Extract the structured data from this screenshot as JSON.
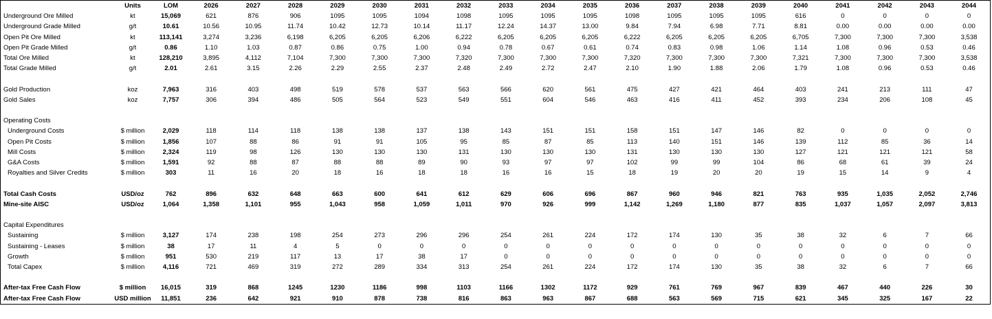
{
  "table": {
    "header": [
      "Units",
      "LOM",
      "2026",
      "2027",
      "2028",
      "2029",
      "2030",
      "2031",
      "2032",
      "2033",
      "2034",
      "2035",
      "2036",
      "2037",
      "2038",
      "2039",
      "2040",
      "2041",
      "2042",
      "2043",
      "2044"
    ],
    "groups": [
      {
        "rows": [
          {
            "label": "Underground Ore Milled",
            "units": "kt",
            "lom": "15,069",
            "values": [
              "621",
              "876",
              "906",
              "1095",
              "1095",
              "1094",
              "1098",
              "1095",
              "1095",
              "1095",
              "1098",
              "1095",
              "1095",
              "1095",
              "616",
              "0",
              "0",
              "0",
              "0"
            ]
          },
          {
            "label": "Underground Grade Milled",
            "units": "g/t",
            "lom": "10.61",
            "values": [
              "10.56",
              "10.95",
              "11.74",
              "10.42",
              "12.73",
              "10.14",
              "11.17",
              "12.24",
              "14.37",
              "13.00",
              "9.84",
              "7.94",
              "6.98",
              "7.71",
              "8.81",
              "0.00",
              "0.00",
              "0.00",
              "0.00"
            ]
          },
          {
            "label": "Open Pit Ore Milled",
            "units": "kt",
            "lom": "113,141",
            "values": [
              "3,274",
              "3,236",
              "6,198",
              "6,205",
              "6,205",
              "6,206",
              "6,222",
              "6,205",
              "6,205",
              "6,205",
              "6,222",
              "6,205",
              "6,205",
              "6,205",
              "6,705",
              "7,300",
              "7,300",
              "7,300",
              "3,538"
            ]
          },
          {
            "label": "Open Pit Grade Milled",
            "units": "g/t",
            "lom": "0.86",
            "values": [
              "1.10",
              "1.03",
              "0.87",
              "0.86",
              "0.75",
              "1.00",
              "0.94",
              "0.78",
              "0.67",
              "0.61",
              "0.74",
              "0.83",
              "0.98",
              "1.06",
              "1.14",
              "1.08",
              "0.96",
              "0.53",
              "0.46"
            ]
          },
          {
            "label": "Total Ore Milled",
            "units": "kt",
            "lom": "128,210",
            "values": [
              "3,895",
              "4,112",
              "7,104",
              "7,300",
              "7,300",
              "7,300",
              "7,320",
              "7,300",
              "7,300",
              "7,300",
              "7,320",
              "7,300",
              "7,300",
              "7,300",
              "7,321",
              "7,300",
              "7,300",
              "7,300",
              "3,538"
            ]
          },
          {
            "label": "Total Grade Milled",
            "units": "g/t",
            "lom": "2.01",
            "values": [
              "2.61",
              "3.15",
              "2.26",
              "2.29",
              "2.55",
              "2.37",
              "2.48",
              "2.49",
              "2.72",
              "2.47",
              "2.10",
              "1.90",
              "1.88",
              "2.06",
              "1.79",
              "1.08",
              "0.96",
              "0.53",
              "0.46"
            ]
          }
        ]
      },
      {
        "rows": [
          {
            "label": "Gold Production",
            "units": "koz",
            "lom": "7,963",
            "values": [
              "316",
              "403",
              "498",
              "519",
              "578",
              "537",
              "563",
              "566",
              "620",
              "561",
              "475",
              "427",
              "421",
              "464",
              "403",
              "241",
              "213",
              "111",
              "47"
            ]
          },
          {
            "label": "Gold Sales",
            "units": "koz",
            "lom": "7,757",
            "values": [
              "306",
              "394",
              "486",
              "505",
              "564",
              "523",
              "549",
              "551",
              "604",
              "546",
              "463",
              "416",
              "411",
              "452",
              "393",
              "234",
              "206",
              "108",
              "45"
            ]
          }
        ]
      },
      {
        "title": "Operating Costs",
        "rows": [
          {
            "label": "Underground Costs",
            "units": "$ million",
            "lom": "2,029",
            "values": [
              "118",
              "114",
              "118",
              "138",
              "138",
              "137",
              "138",
              "143",
              "151",
              "151",
              "158",
              "151",
              "147",
              "146",
              "82",
              "0",
              "0",
              "0",
              "0"
            ]
          },
          {
            "label": "Open Pit Costs",
            "units": "$ million",
            "lom": "1,856",
            "values": [
              "107",
              "88",
              "86",
              "91",
              "91",
              "105",
              "95",
              "85",
              "87",
              "85",
              "113",
              "140",
              "151",
              "146",
              "139",
              "112",
              "85",
              "36",
              "14"
            ]
          },
          {
            "label": "Mill Costs",
            "units": "$ million",
            "lom": "2,324",
            "values": [
              "119",
              "98",
              "126",
              "130",
              "130",
              "130",
              "131",
              "130",
              "130",
              "130",
              "131",
              "130",
              "130",
              "130",
              "127",
              "121",
              "121",
              "121",
              "58"
            ]
          },
          {
            "label": "G&A Costs",
            "units": "$ million",
            "lom": "1,591",
            "values": [
              "92",
              "88",
              "87",
              "88",
              "88",
              "89",
              "90",
              "93",
              "97",
              "97",
              "102",
              "99",
              "99",
              "104",
              "86",
              "68",
              "61",
              "39",
              "24"
            ]
          },
          {
            "label": "Royalties and Silver Credits",
            "units": "$ million",
            "lom": "303",
            "values": [
              "11",
              "16",
              "20",
              "18",
              "16",
              "18",
              "18",
              "16",
              "16",
              "15",
              "18",
              "19",
              "20",
              "20",
              "19",
              "15",
              "14",
              "9",
              "4"
            ]
          }
        ]
      },
      {
        "rows": [
          {
            "label": "Total Cash Costs",
            "units": "USD/oz",
            "lom": "762",
            "values": [
              "896",
              "632",
              "648",
              "663",
              "600",
              "641",
              "612",
              "629",
              "606",
              "696",
              "867",
              "960",
              "946",
              "821",
              "763",
              "935",
              "1,035",
              "2,052",
              "2,746"
            ]
          },
          {
            "label": "Mine-site AISC",
            "units": "USD/oz",
            "lom": "1,064",
            "values": [
              "1,358",
              "1,101",
              "955",
              "1,043",
              "958",
              "1,059",
              "1,011",
              "970",
              "926",
              "999",
              "1,142",
              "1,269",
              "1,180",
              "877",
              "835",
              "1,037",
              "1,057",
              "2,097",
              "3,813"
            ]
          }
        ]
      },
      {
        "title": "Capital Expenditures",
        "rows": [
          {
            "label": "Sustaining",
            "units": "$ million",
            "lom": "3,127",
            "values": [
              "174",
              "238",
              "198",
              "254",
              "273",
              "296",
              "296",
              "254",
              "261",
              "224",
              "172",
              "174",
              "130",
              "35",
              "38",
              "32",
              "6",
              "7",
              "66"
            ]
          },
          {
            "label": "Sustaining - Leases",
            "units": "$ million",
            "lom": "38",
            "values": [
              "17",
              "11",
              "4",
              "5",
              "0",
              "0",
              "0",
              "0",
              "0",
              "0",
              "0",
              "0",
              "0",
              "0",
              "0",
              "0",
              "0",
              "0",
              "0"
            ]
          },
          {
            "label": "Growth",
            "units": "$ million",
            "lom": "951",
            "values": [
              "530",
              "219",
              "117",
              "13",
              "17",
              "38",
              "17",
              "0",
              "0",
              "0",
              "0",
              "0",
              "0",
              "0",
              "0",
              "0",
              "0",
              "0",
              "0"
            ]
          },
          {
            "label": "Total Capex",
            "units": "$ million",
            "lom": "4,116",
            "values": [
              "721",
              "469",
              "319",
              "272",
              "289",
              "334",
              "313",
              "254",
              "261",
              "224",
              "172",
              "174",
              "130",
              "35",
              "38",
              "32",
              "6",
              "7",
              "66"
            ]
          }
        ]
      },
      {
        "rows": [
          {
            "label": "After-tax Free Cash Flow",
            "units": "$ million",
            "lom": "16,015",
            "values": [
              "319",
              "868",
              "1245",
              "1230",
              "1186",
              "998",
              "1103",
              "1166",
              "1302",
              "1172",
              "929",
              "761",
              "769",
              "967",
              "839",
              "467",
              "440",
              "226",
              "30"
            ]
          },
          {
            "label": "After-tax Free Cash Flow",
            "units": "USD million",
            "lom": "11,851",
            "values": [
              "236",
              "642",
              "921",
              "910",
              "878",
              "738",
              "816",
              "863",
              "963",
              "867",
              "688",
              "563",
              "569",
              "715",
              "621",
              "345",
              "325",
              "167",
              "22"
            ]
          }
        ]
      }
    ]
  }
}
